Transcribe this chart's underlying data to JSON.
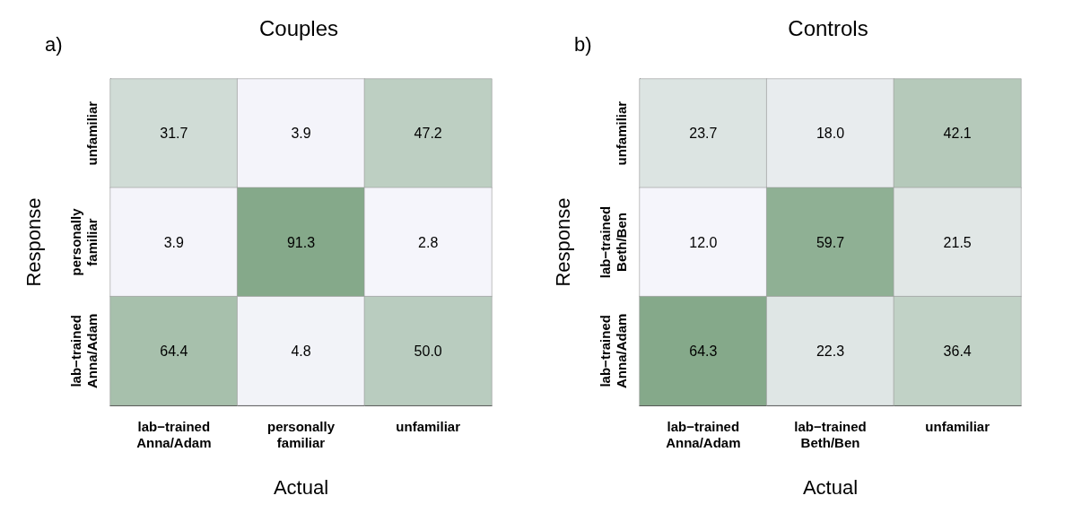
{
  "chart_data": [
    {
      "type": "heatmap",
      "title": "Couples",
      "xlabel": "Actual",
      "ylabel": "Response",
      "annotations": [
        "a)"
      ],
      "categories": [
        "lab−trained Anna/Adam",
        "personally familiar",
        "unfamiliar"
      ],
      "y_categories": [
        "unfamiliar",
        "personally familiar",
        "lab−trained Anna/Adam"
      ],
      "cells": [
        [
          31.7,
          3.9,
          47.2
        ],
        [
          3.9,
          91.3,
          2.8
        ],
        [
          64.4,
          4.8,
          50.0
        ]
      ],
      "cell_labels": [
        [
          "31.7",
          "3.9",
          "47.2"
        ],
        [
          "3.9",
          "91.3",
          "2.8"
        ],
        [
          "64.4",
          "4.8",
          "50.0"
        ]
      ]
    },
    {
      "type": "heatmap",
      "title": "Controls",
      "xlabel": "Actual",
      "ylabel": "Response",
      "annotations": [
        "b)"
      ],
      "categories": [
        "lab−trained Anna/Adam",
        "lab−trained Beth/Ben",
        "unfamiliar"
      ],
      "y_categories": [
        "unfamiliar",
        "lab−trained Beth/Ben",
        "lab−trained Anna/Adam"
      ],
      "cells": [
        [
          23.7,
          18.0,
          42.1
        ],
        [
          12.0,
          59.7,
          21.5
        ],
        [
          64.3,
          22.3,
          36.4
        ]
      ],
      "cell_labels": [
        [
          "23.7",
          "18.0",
          "42.1"
        ],
        [
          "12.0",
          "59.7",
          "21.5"
        ],
        [
          "64.3",
          "22.3",
          "36.4"
        ]
      ]
    }
  ]
}
